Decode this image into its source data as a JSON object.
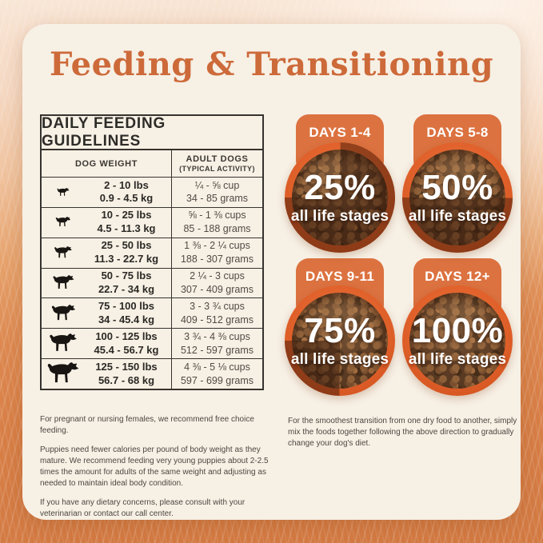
{
  "header": {
    "title": "Feeding & Transitioning"
  },
  "colors": {
    "title_orange": "#cd6a3a",
    "tab_orange": "#dc7240",
    "bowl_rim_orange": "#e0602a",
    "card_cream": "#f7f0e5",
    "table_line": "#36332e"
  },
  "table": {
    "title": "DAILY FEEDING GUIDELINES",
    "col1_header": "DOG WEIGHT",
    "col2_header_line1": "ADULT DOGS",
    "col2_header_line2": "(TYPICAL ACTIVITY)",
    "rows": [
      {
        "icon": "dog-silhouette-icon",
        "lbs": "2 - 10 lbs",
        "kg": "0.9 - 4.5 kg",
        "cups": "¼ - ⅝ cup",
        "grams": "34 - 85 grams"
      },
      {
        "icon": "dog-silhouette-icon",
        "lbs": "10 - 25 lbs",
        "kg": "4.5 - 11.3 kg",
        "cups": "⅝ - 1 ⅜ cups",
        "grams": "85 - 188 grams"
      },
      {
        "icon": "dog-silhouette-icon",
        "lbs": "25 - 50 lbs",
        "kg": "11.3 - 22.7 kg",
        "cups": "1 ⅜ - 2 ¼ cups",
        "grams": "188 - 307 grams"
      },
      {
        "icon": "dog-silhouette-icon",
        "lbs": "50 - 75 lbs",
        "kg": "22.7 - 34 kg",
        "cups": "2 ¼ - 3 cups",
        "grams": "307 - 409 grams"
      },
      {
        "icon": "dog-silhouette-icon",
        "lbs": "75 - 100 lbs",
        "kg": "34 - 45.4 kg",
        "cups": "3 - 3 ¾ cups",
        "grams": "409 - 512 grams"
      },
      {
        "icon": "dog-silhouette-icon",
        "lbs": "100 - 125 lbs",
        "kg": "45.4 - 56.7 kg",
        "cups": "3 ¾ - 4 ⅜ cups",
        "grams": "512 - 597 grams"
      },
      {
        "icon": "dog-silhouette-icon",
        "lbs": "125 - 150 lbs",
        "kg": "56.7 - 68 kg",
        "cups": "4 ⅜ - 5 ⅛ cups",
        "grams": "597 - 699 grams"
      }
    ]
  },
  "transition": {
    "bowls": [
      {
        "label": "DAYS 1-4",
        "percent": "25%",
        "sub": "all life stages",
        "value": 25
      },
      {
        "label": "DAYS 5-8",
        "percent": "50%",
        "sub": "all life stages",
        "value": 50
      },
      {
        "label": "DAYS 9-11",
        "percent": "75%",
        "sub": "all life stages",
        "value": 75
      },
      {
        "label": "DAYS 12+",
        "percent": "100%",
        "sub": "all life stages",
        "value": 100
      }
    ]
  },
  "notes_left": {
    "p1": "For pregnant or nursing females, we recommend free choice feeding.",
    "p2": "Puppies need fewer calories per pound of body weight as they mature. We recommend feeding very young puppies about 2-2.5 times the amount for adults of the same weight and adjusting as needed to maintain ideal body condition.",
    "p3": "If you have any dietary concerns, please consult with your veterinarian or contact our call center."
  },
  "notes_right": {
    "p1": "For the smoothest transition from one dry food to another, simply mix the foods together following the above direction to gradually change your dog's diet."
  }
}
